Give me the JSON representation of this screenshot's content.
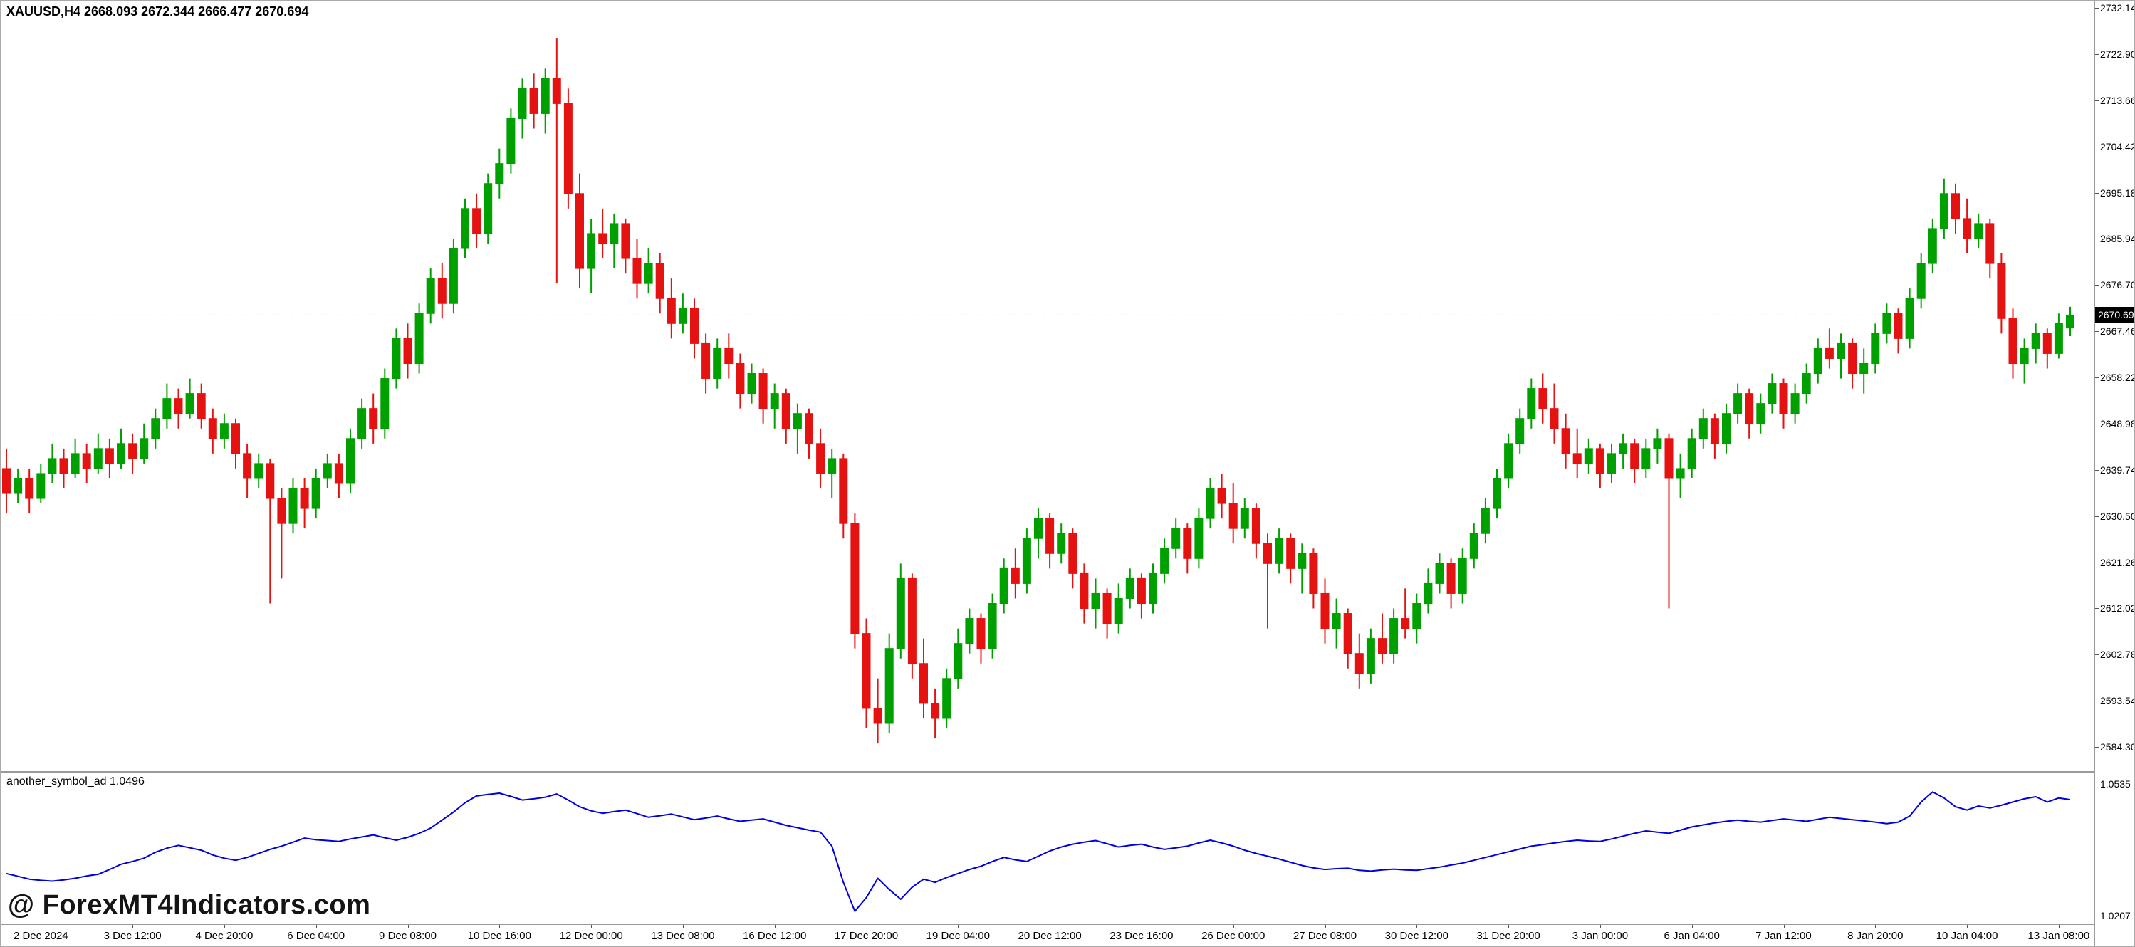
{
  "header": {
    "symbol_ohlc": "XAUUSD,H4 2668.093 2672.344 2666.477 2670.694"
  },
  "watermark": "@ ForexMT4Indicators.com",
  "current_price_tag": "2670.694",
  "chart_data": [
    {
      "type": "candlestick",
      "symbol": "XAUUSD",
      "timeframe": "H4",
      "ohlc_current": {
        "open": 2668.093,
        "high": 2672.344,
        "low": 2666.477,
        "close": 2670.694
      },
      "current_price_line": 2670.694,
      "bull_color": "#00A000",
      "bear_color": "#E51212",
      "y_tick_labels": [
        "2732.140",
        "2722.900",
        "2713.660",
        "2704.420",
        "2695.180",
        "2685.940",
        "2676.700",
        "2667.460",
        "2658.220",
        "2648.980",
        "2639.740",
        "2630.500",
        "2621.260",
        "2612.020",
        "2602.780",
        "2593.540",
        "2584.300"
      ],
      "x_tick_labels": [
        "2 Dec 2024",
        "3 Dec 12:00",
        "4 Dec 20:00",
        "6 Dec 04:00",
        "9 Dec 08:00",
        "10 Dec 16:00",
        "12 Dec 00:00",
        "13 Dec 08:00",
        "16 Dec 12:00",
        "17 Dec 20:00",
        "19 Dec 04:00",
        "20 Dec 12:00",
        "23 Dec 16:00",
        "26 Dec 00:00",
        "27 Dec 08:00",
        "30 Dec 12:00",
        "31 Dec 20:00",
        "3 Jan 00:00",
        "6 Jan 04:00",
        "7 Jan 12:00",
        "8 Jan 20:00",
        "10 Jan 04:00",
        "13 Jan 08:00"
      ],
      "first_label_candle_index": 3,
      "label_candle_step": 8,
      "candles": [
        [
          2640,
          2644,
          2631,
          2635
        ],
        [
          2635,
          2640,
          2633,
          2638
        ],
        [
          2638,
          2640,
          2631,
          2634
        ],
        [
          2634,
          2641,
          2633,
          2639
        ],
        [
          2639,
          2645,
          2637,
          2642
        ],
        [
          2642,
          2644,
          2636,
          2639
        ],
        [
          2639,
          2646,
          2638,
          2643
        ],
        [
          2643,
          2645,
          2637,
          2640
        ],
        [
          2640,
          2647,
          2639,
          2644
        ],
        [
          2644,
          2646,
          2638,
          2641
        ],
        [
          2641,
          2648,
          2640,
          2645
        ],
        [
          2645,
          2647,
          2639,
          2642
        ],
        [
          2642,
          2649,
          2641,
          2646
        ],
        [
          2646,
          2652,
          2644,
          2650
        ],
        [
          2650,
          2657,
          2648,
          2654
        ],
        [
          2654,
          2656,
          2648,
          2651
        ],
        [
          2651,
          2658,
          2650,
          2655
        ],
        [
          2655,
          2657,
          2648,
          2650
        ],
        [
          2650,
          2652,
          2643,
          2646
        ],
        [
          2646,
          2651,
          2644,
          2649
        ],
        [
          2649,
          2650,
          2640,
          2643
        ],
        [
          2643,
          2645,
          2634,
          2638
        ],
        [
          2638,
          2643,
          2636,
          2641
        ],
        [
          2641,
          2642,
          2613,
          2634
        ],
        [
          2634,
          2636,
          2618,
          2629
        ],
        [
          2629,
          2638,
          2627,
          2636
        ],
        [
          2636,
          2638,
          2628,
          2632
        ],
        [
          2632,
          2640,
          2630,
          2638
        ],
        [
          2638,
          2643,
          2636,
          2641
        ],
        [
          2641,
          2643,
          2634,
          2637
        ],
        [
          2637,
          2648,
          2635,
          2646
        ],
        [
          2646,
          2654,
          2644,
          2652
        ],
        [
          2652,
          2655,
          2645,
          2648
        ],
        [
          2648,
          2660,
          2646,
          2658
        ],
        [
          2658,
          2668,
          2656,
          2666
        ],
        [
          2666,
          2669,
          2658,
          2661
        ],
        [
          2661,
          2673,
          2659,
          2671
        ],
        [
          2671,
          2680,
          2669,
          2678
        ],
        [
          2678,
          2681,
          2670,
          2673
        ],
        [
          2673,
          2686,
          2671,
          2684
        ],
        [
          2684,
          2694,
          2682,
          2692
        ],
        [
          2692,
          2695,
          2684,
          2687
        ],
        [
          2687,
          2699,
          2685,
          2697
        ],
        [
          2697,
          2704,
          2694,
          2701
        ],
        [
          2701,
          2712,
          2699,
          2710
        ],
        [
          2710,
          2718,
          2706,
          2716
        ],
        [
          2716,
          2719,
          2708,
          2711
        ],
        [
          2711,
          2720,
          2707,
          2718
        ],
        [
          2718,
          2726,
          2677,
          2713
        ],
        [
          2713,
          2716,
          2692,
          2695
        ],
        [
          2695,
          2699,
          2676,
          2680
        ],
        [
          2680,
          2690,
          2675,
          2687
        ],
        [
          2687,
          2692,
          2682,
          2685
        ],
        [
          2685,
          2691,
          2680,
          2689
        ],
        [
          2689,
          2690,
          2679,
          2682
        ],
        [
          2682,
          2686,
          2674,
          2677
        ],
        [
          2677,
          2684,
          2675,
          2681
        ],
        [
          2681,
          2683,
          2671,
          2674
        ],
        [
          2674,
          2678,
          2666,
          2669
        ],
        [
          2669,
          2675,
          2667,
          2672
        ],
        [
          2672,
          2674,
          2662,
          2665
        ],
        [
          2665,
          2667,
          2655,
          2658
        ],
        [
          2658,
          2666,
          2656,
          2664
        ],
        [
          2664,
          2667,
          2658,
          2661
        ],
        [
          2661,
          2663,
          2652,
          2655
        ],
        [
          2655,
          2661,
          2653,
          2659
        ],
        [
          2659,
          2660,
          2649,
          2652
        ],
        [
          2652,
          2657,
          2648,
          2655
        ],
        [
          2655,
          2656,
          2645,
          2648
        ],
        [
          2648,
          2653,
          2643,
          2651
        ],
        [
          2651,
          2652,
          2642,
          2645
        ],
        [
          2645,
          2648,
          2636,
          2639
        ],
        [
          2639,
          2644,
          2634,
          2642
        ],
        [
          2642,
          2643,
          2626,
          2629
        ],
        [
          2629,
          2631,
          2604,
          2607
        ],
        [
          2607,
          2610,
          2588,
          2592
        ],
        [
          2592,
          2598,
          2585,
          2589
        ],
        [
          2589,
          2607,
          2587,
          2604
        ],
        [
          2604,
          2621,
          2602,
          2618
        ],
        [
          2618,
          2619,
          2598,
          2601
        ],
        [
          2601,
          2606,
          2590,
          2593
        ],
        [
          2593,
          2596,
          2586,
          2590
        ],
        [
          2590,
          2600,
          2588,
          2598
        ],
        [
          2598,
          2608,
          2596,
          2605
        ],
        [
          2605,
          2612,
          2603,
          2610
        ],
        [
          2610,
          2611,
          2601,
          2604
        ],
        [
          2604,
          2615,
          2602,
          2613
        ],
        [
          2613,
          2622,
          2611,
          2620
        ],
        [
          2620,
          2624,
          2614,
          2617
        ],
        [
          2617,
          2628,
          2615,
          2626
        ],
        [
          2626,
          2632,
          2622,
          2630
        ],
        [
          2630,
          2631,
          2620,
          2623
        ],
        [
          2623,
          2629,
          2621,
          2627
        ],
        [
          2627,
          2628,
          2616,
          2619
        ],
        [
          2619,
          2621,
          2609,
          2612
        ],
        [
          2612,
          2618,
          2608,
          2615
        ],
        [
          2615,
          2616,
          2606,
          2609
        ],
        [
          2609,
          2617,
          2607,
          2614
        ],
        [
          2614,
          2620,
          2612,
          2618
        ],
        [
          2618,
          2619,
          2610,
          2613
        ],
        [
          2613,
          2621,
          2611,
          2619
        ],
        [
          2619,
          2626,
          2617,
          2624
        ],
        [
          2624,
          2630,
          2622,
          2628
        ],
        [
          2628,
          2629,
          2619,
          2622
        ],
        [
          2622,
          2632,
          2620,
          2630
        ],
        [
          2630,
          2638,
          2628,
          2636
        ],
        [
          2636,
          2639,
          2630,
          2633
        ],
        [
          2633,
          2637,
          2625,
          2628
        ],
        [
          2628,
          2634,
          2626,
          2632
        ],
        [
          2632,
          2633,
          2622,
          2625
        ],
        [
          2625,
          2627,
          2608,
          2621
        ],
        [
          2621,
          2628,
          2619,
          2626
        ],
        [
          2626,
          2627,
          2617,
          2620
        ],
        [
          2620,
          2625,
          2615,
          2623
        ],
        [
          2623,
          2624,
          2612,
          2615
        ],
        [
          2615,
          2618,
          2605,
          2608
        ],
        [
          2608,
          2614,
          2604,
          2611
        ],
        [
          2611,
          2612,
          2600,
          2603
        ],
        [
          2603,
          2607,
          2596,
          2599
        ],
        [
          2599,
          2608,
          2597,
          2606
        ],
        [
          2606,
          2611,
          2601,
          2603
        ],
        [
          2603,
          2612,
          2601,
          2610
        ],
        [
          2610,
          2616,
          2606,
          2608
        ],
        [
          2608,
          2615,
          2605,
          2613
        ],
        [
          2613,
          2620,
          2611,
          2617
        ],
        [
          2617,
          2623,
          2615,
          2621
        ],
        [
          2621,
          2622,
          2612,
          2615
        ],
        [
          2615,
          2624,
          2613,
          2622
        ],
        [
          2622,
          2629,
          2620,
          2627
        ],
        [
          2627,
          2634,
          2625,
          2632
        ],
        [
          2632,
          2640,
          2630,
          2638
        ],
        [
          2638,
          2647,
          2636,
          2645
        ],
        [
          2645,
          2652,
          2643,
          2650
        ],
        [
          2650,
          2658,
          2648,
          2656
        ],
        [
          2656,
          2659,
          2649,
          2652
        ],
        [
          2652,
          2657,
          2645,
          2648
        ],
        [
          2648,
          2651,
          2640,
          2643
        ],
        [
          2643,
          2648,
          2638,
          2641
        ],
        [
          2641,
          2646,
          2639,
          2644
        ],
        [
          2644,
          2645,
          2636,
          2639
        ],
        [
          2639,
          2645,
          2637,
          2643
        ],
        [
          2643,
          2647,
          2640,
          2645
        ],
        [
          2645,
          2646,
          2637,
          2640
        ],
        [
          2640,
          2646,
          2638,
          2644
        ],
        [
          2644,
          2648,
          2641,
          2646
        ],
        [
          2646,
          2647,
          2612,
          2638
        ],
        [
          2638,
          2643,
          2634,
          2640
        ],
        [
          2640,
          2648,
          2638,
          2646
        ],
        [
          2646,
          2652,
          2644,
          2650
        ],
        [
          2650,
          2651,
          2642,
          2645
        ],
        [
          2645,
          2653,
          2643,
          2651
        ],
        [
          2651,
          2657,
          2649,
          2655
        ],
        [
          2655,
          2656,
          2646,
          2649
        ],
        [
          2649,
          2655,
          2647,
          2653
        ],
        [
          2653,
          2659,
          2651,
          2657
        ],
        [
          2657,
          2658,
          2648,
          2651
        ],
        [
          2651,
          2657,
          2649,
          2655
        ],
        [
          2655,
          2661,
          2653,
          2659
        ],
        [
          2659,
          2666,
          2657,
          2664
        ],
        [
          2664,
          2668,
          2660,
          2662
        ],
        [
          2662,
          2667,
          2658,
          2665
        ],
        [
          2665,
          2666,
          2656,
          2659
        ],
        [
          2659,
          2664,
          2655,
          2661
        ],
        [
          2661,
          2669,
          2659,
          2667
        ],
        [
          2667,
          2673,
          2665,
          2671
        ],
        [
          2671,
          2672,
          2663,
          2666
        ],
        [
          2666,
          2676,
          2664,
          2674
        ],
        [
          2674,
          2683,
          2672,
          2681
        ],
        [
          2681,
          2690,
          2679,
          2688
        ],
        [
          2688,
          2698,
          2686,
          2695
        ],
        [
          2695,
          2697,
          2687,
          2690
        ],
        [
          2690,
          2694,
          2683,
          2686
        ],
        [
          2686,
          2691,
          2684,
          2689
        ],
        [
          2689,
          2690,
          2678,
          2681
        ],
        [
          2681,
          2683,
          2667,
          2670
        ],
        [
          2670,
          2672,
          2658,
          2661
        ],
        [
          2661,
          2666,
          2657,
          2664
        ],
        [
          2664,
          2669,
          2661,
          2667
        ],
        [
          2667,
          2668,
          2660,
          2663
        ],
        [
          2663,
          2671,
          2662,
          2669
        ],
        [
          2668.093,
          2672.344,
          2666.477,
          2670.694
        ]
      ]
    },
    {
      "type": "line",
      "name": "another_symbol_ad",
      "label": "another_symbol_ad 1.0496",
      "current_value": 1.0496,
      "color": "#0000DE",
      "y_tick_labels": [
        "1.0535",
        "1.0207"
      ],
      "values": [
        1.0312,
        1.0305,
        1.0298,
        1.0295,
        1.0293,
        1.0296,
        1.03,
        1.0306,
        1.031,
        1.0322,
        1.0335,
        1.0342,
        1.035,
        1.0365,
        1.0375,
        1.0382,
        1.0376,
        1.037,
        1.0358,
        1.035,
        1.0345,
        1.0352,
        1.0362,
        1.0372,
        1.038,
        1.039,
        1.04,
        1.0396,
        1.0394,
        1.0392,
        1.0398,
        1.0403,
        1.0408,
        1.0401,
        1.0395,
        1.0402,
        1.0412,
        1.0425,
        1.0445,
        1.0465,
        1.0488,
        1.0505,
        1.0509,
        1.0512,
        1.0504,
        1.0495,
        1.0498,
        1.0502,
        1.051,
        1.0495,
        1.0478,
        1.0468,
        1.0462,
        1.0466,
        1.047,
        1.0461,
        1.0452,
        1.0456,
        1.046,
        1.0453,
        1.0446,
        1.045,
        1.0455,
        1.0448,
        1.0442,
        1.0445,
        1.0448,
        1.044,
        1.0432,
        1.0426,
        1.042,
        1.0415,
        1.038,
        1.029,
        1.0218,
        1.0252,
        1.03,
        1.0272,
        1.0248,
        1.0278,
        1.0298,
        1.029,
        1.0302,
        1.0312,
        1.0322,
        1.033,
        1.0342,
        1.0352,
        1.0346,
        1.0342,
        1.0355,
        1.0368,
        1.0378,
        1.0385,
        1.039,
        1.0394,
        1.0386,
        1.0378,
        1.0382,
        1.0385,
        1.0378,
        1.0372,
        1.0376,
        1.038,
        1.0388,
        1.0395,
        1.0388,
        1.038,
        1.037,
        1.0362,
        1.0355,
        1.0348,
        1.034,
        1.0332,
        1.0326,
        1.0322,
        1.0324,
        1.0325,
        1.032,
        1.0318,
        1.0321,
        1.0323,
        1.0321,
        1.032,
        1.0324,
        1.0328,
        1.0333,
        1.0338,
        1.0345,
        1.0352,
        1.0359,
        1.0366,
        1.0373,
        1.038,
        1.0384,
        1.0388,
        1.0392,
        1.0395,
        1.0393,
        1.0392,
        1.0398,
        1.0405,
        1.0412,
        1.0418,
        1.0415,
        1.0412,
        1.042,
        1.0428,
        1.0433,
        1.0438,
        1.0442,
        1.0445,
        1.0442,
        1.044,
        1.0444,
        1.0448,
        1.0445,
        1.0442,
        1.0447,
        1.0452,
        1.0449,
        1.0446,
        1.0443,
        1.044,
        1.0436,
        1.044,
        1.0455,
        1.049,
        1.0515,
        1.05,
        1.0478,
        1.047,
        1.048,
        1.0475,
        1.0482,
        1.049,
        1.0498,
        1.0503,
        1.049,
        1.05,
        1.0496
      ]
    }
  ]
}
